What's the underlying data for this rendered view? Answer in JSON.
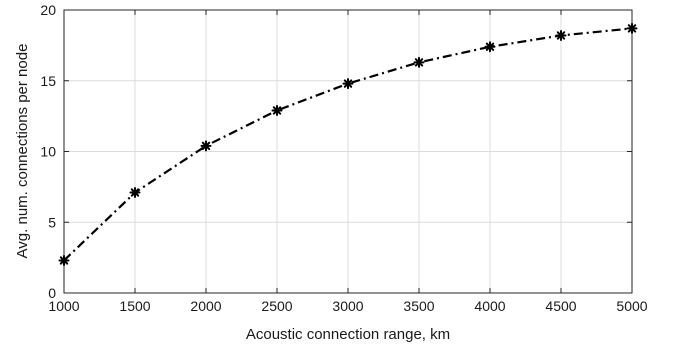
{
  "chart_data": {
    "type": "line",
    "title": "",
    "xlabel": "Acoustic connection range, km",
    "ylabel": "Avg. num. connections per node",
    "xlim": [
      1000,
      5000
    ],
    "ylim": [
      0,
      20
    ],
    "xticks": [
      1000,
      1500,
      2000,
      2500,
      3000,
      3500,
      4000,
      4500,
      5000
    ],
    "yticks": [
      0,
      5,
      10,
      15,
      20
    ],
    "grid": true,
    "legend": "none",
    "series": [
      {
        "x": [
          1000,
          1500,
          2000,
          2500,
          3000,
          3500,
          4000,
          4500,
          5000
        ],
        "values": [
          2.3,
          7.1,
          10.4,
          12.9,
          14.8,
          16.3,
          17.4,
          18.2,
          18.7
        ],
        "line_style": "dash-dot",
        "marker": "asterisk",
        "color": "#000000"
      }
    ]
  },
  "colors": {
    "grid": "#dcdcdc",
    "axis": "#262626",
    "text": "#1a1a1a"
  }
}
